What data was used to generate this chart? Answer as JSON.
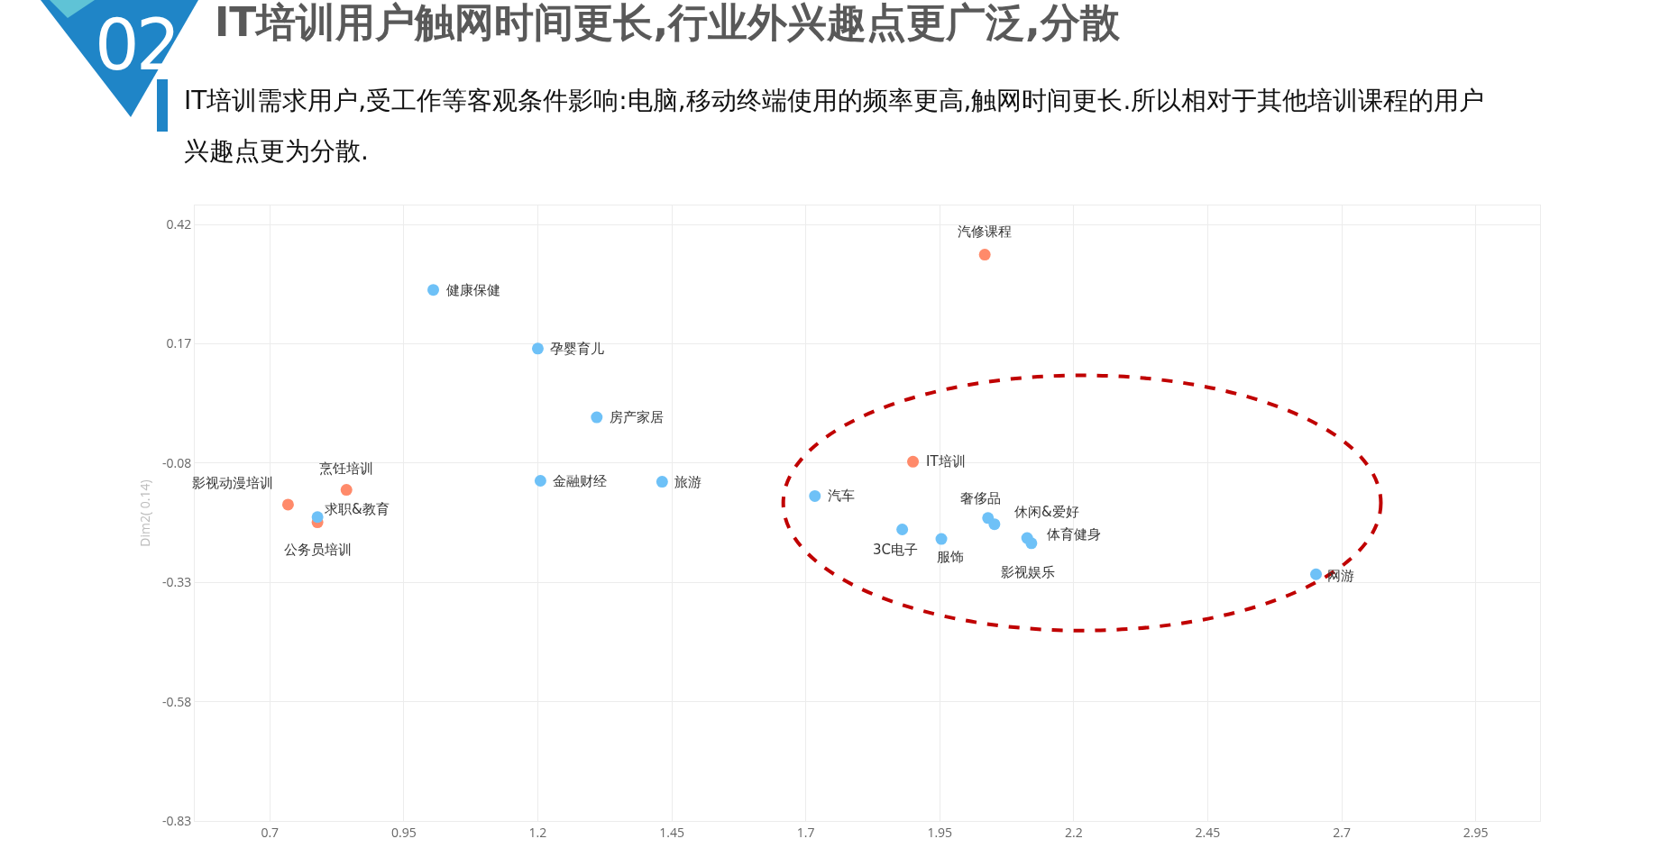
{
  "chart_data": {
    "type": "scatter",
    "title": "IT培训用户触网时间更长,行业外兴趣点更广泛,分散",
    "subtitle": "IT培训需求用户,受工作等客观条件影响:电脑,移动终端使用的频率更高,触网时间更长.所以相对于其他培训课程的用户兴趣点更为分散.",
    "ylabel": "Dim2( 0.14)",
    "series": [
      {
        "color": "#ff8a6a",
        "x": [
          2.034,
          1.9,
          0.734,
          0.843,
          0.789
        ],
        "values": [
          0.357,
          -0.077,
          -0.167,
          -0.136,
          -0.204
        ]
      },
      {
        "color": "#6ec1f7",
        "x": [
          1.005,
          1.2,
          1.31,
          1.205,
          1.432,
          1.717,
          0.789,
          1.88,
          1.953,
          2.04,
          2.052,
          2.113,
          2.121,
          2.652
        ],
        "values": [
          0.283,
          0.16,
          0.016,
          -0.117,
          -0.119,
          -0.149,
          -0.193,
          -0.219,
          -0.239,
          -0.195,
          -0.208,
          -0.237,
          -0.248,
          -0.313
        ]
      }
    ],
    "annotations": [
      "02",
      {
        "text": "汽修课程",
        "x": 2.034,
        "y": 0.357
      },
      {
        "text": "IT培训",
        "x": 1.9,
        "y": -0.077
      },
      {
        "text": "影视动漫培训",
        "x": 0.734,
        "y": -0.167
      },
      {
        "text": "烹饪培训",
        "x": 0.843,
        "y": -0.136
      },
      {
        "text": "公务员培训",
        "x": 0.789,
        "y": -0.204
      },
      {
        "text": "健康保健",
        "x": 1.005,
        "y": 0.283
      },
      {
        "text": "孕婴育儿",
        "x": 1.2,
        "y": 0.16
      },
      {
        "text": "房产家居",
        "x": 1.31,
        "y": 0.016
      },
      {
        "text": "金融财经",
        "x": 1.205,
        "y": -0.117
      },
      {
        "text": "旅游",
        "x": 1.432,
        "y": -0.119
      },
      {
        "text": "汽车",
        "x": 1.717,
        "y": -0.149
      },
      {
        "text": "求职&教育",
        "x": 0.789,
        "y": -0.193
      },
      {
        "text": "3C电子",
        "x": 1.88,
        "y": -0.219
      },
      {
        "text": "服饰",
        "x": 1.953,
        "y": -0.239
      },
      {
        "text": "奢侈品",
        "x": 2.04,
        "y": -0.195
      },
      {
        "text": "休闲&爱好",
        "x": 2.052,
        "y": -0.208
      },
      {
        "text": "体育健身",
        "x": 2.113,
        "y": -0.237
      },
      {
        "text": "影视娱乐",
        "x": 2.121,
        "y": -0.248
      },
      {
        "text": "网游",
        "x": 2.652,
        "y": -0.313
      }
    ],
    "xlim": [
      0.56,
      3.07
    ],
    "xticks": [
      0.7,
      0.95,
      1.2,
      1.45,
      1.7,
      1.95,
      2.2,
      2.45,
      2.7,
      2.95
    ],
    "ylim": [
      -0.83,
      0.46
    ],
    "yticks": [
      0.42,
      0.17,
      -0.08,
      -0.33,
      -0.58,
      -0.83
    ],
    "grid": true,
    "marker": "circle"
  }
}
